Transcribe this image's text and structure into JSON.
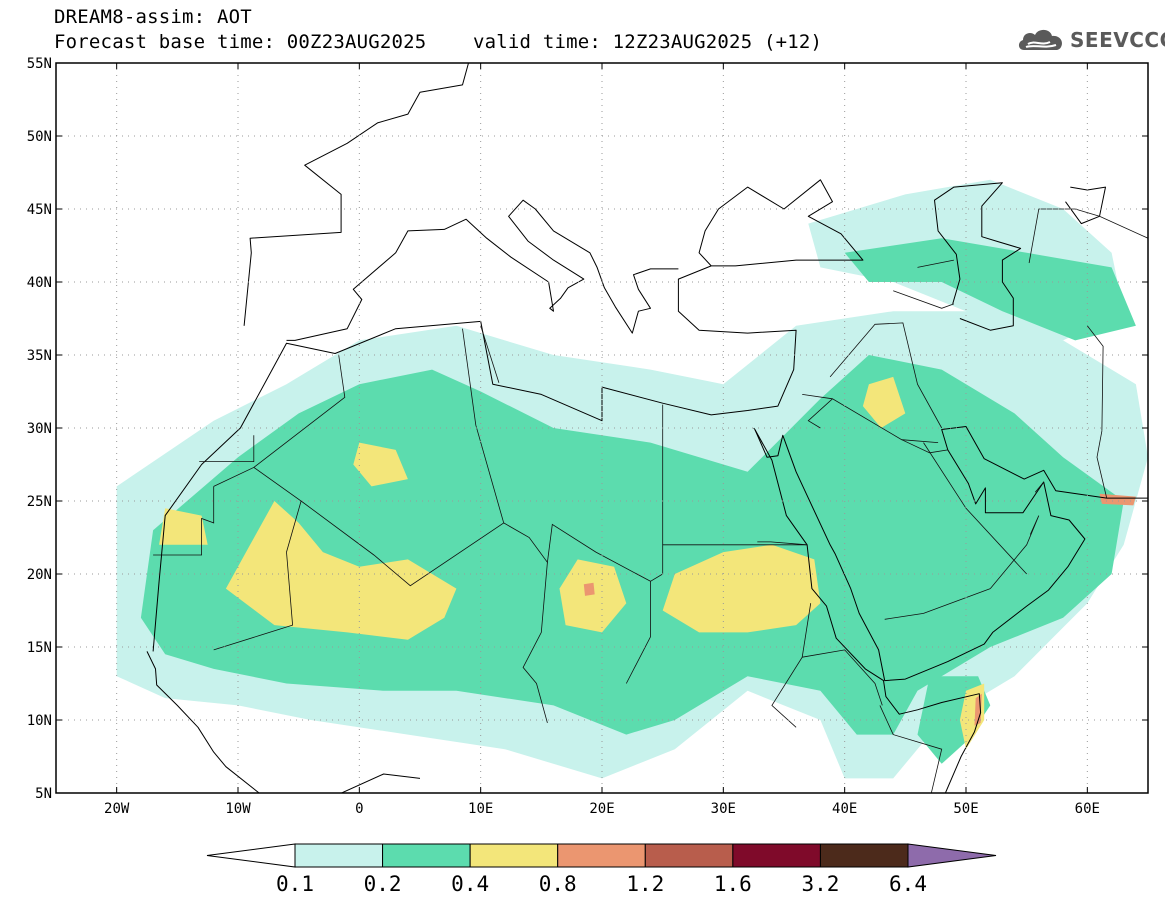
{
  "header": {
    "line1": "DREAM8-assim: AOT",
    "line2": "Forecast base time: 00Z23AUG2025    valid time: 12Z23AUG2025 (+12)"
  },
  "logo": {
    "text": "SEEVCCC",
    "icon": "cloud-icon"
  },
  "map": {
    "lon_range": [
      -25,
      65
    ],
    "lat_range": [
      5,
      55
    ],
    "lat_ticks": [
      {
        "value": 55,
        "label": "55N"
      },
      {
        "value": 50,
        "label": "50N"
      },
      {
        "value": 45,
        "label": "45N"
      },
      {
        "value": 40,
        "label": "40N"
      },
      {
        "value": 35,
        "label": "35N"
      },
      {
        "value": 30,
        "label": "30N"
      },
      {
        "value": 25,
        "label": "25N"
      },
      {
        "value": 20,
        "label": "20N"
      },
      {
        "value": 15,
        "label": "15N"
      },
      {
        "value": 10,
        "label": "10N"
      },
      {
        "value": 5,
        "label": "5N"
      }
    ],
    "lon_ticks": [
      {
        "value": -20,
        "label": "20W"
      },
      {
        "value": -10,
        "label": "10W"
      },
      {
        "value": 0,
        "label": "0"
      },
      {
        "value": 10,
        "label": "10E"
      },
      {
        "value": 20,
        "label": "20E"
      },
      {
        "value": 30,
        "label": "30E"
      },
      {
        "value": 40,
        "label": "40E"
      },
      {
        "value": 50,
        "label": "50E"
      },
      {
        "value": 60,
        "label": "60E"
      }
    ],
    "grid": "dotted",
    "dust_regions": [
      {
        "level": "0.1",
        "polygon": [
          [
            -20,
            19
          ],
          [
            -20,
            26
          ],
          [
            -12,
            30.5
          ],
          [
            -6,
            33
          ],
          [
            0,
            36
          ],
          [
            8,
            37
          ],
          [
            16,
            35
          ],
          [
            24,
            34
          ],
          [
            30,
            33
          ],
          [
            36,
            37
          ],
          [
            44,
            38
          ],
          [
            52,
            38
          ],
          [
            58,
            36
          ],
          [
            64,
            33
          ],
          [
            65,
            28
          ],
          [
            63,
            22
          ],
          [
            60,
            18
          ],
          [
            54,
            13
          ],
          [
            48,
            10
          ],
          [
            44,
            6
          ],
          [
            40,
            6
          ],
          [
            38,
            10
          ],
          [
            32,
            12
          ],
          [
            26,
            8
          ],
          [
            20,
            6
          ],
          [
            12,
            8
          ],
          [
            4,
            9
          ],
          [
            -4,
            10
          ],
          [
            -10,
            11
          ],
          [
            -16,
            11.5
          ],
          [
            -20,
            13
          ]
        ]
      },
      {
        "level": "0.1",
        "polygon": [
          [
            37,
            44
          ],
          [
            45,
            46
          ],
          [
            52,
            47
          ],
          [
            58,
            45
          ],
          [
            62,
            42
          ],
          [
            63,
            38
          ],
          [
            58,
            36
          ],
          [
            50,
            38
          ],
          [
            44,
            40
          ],
          [
            38,
            41
          ]
        ]
      },
      {
        "level": "0.2",
        "polygon": [
          [
            -18,
            17
          ],
          [
            -17,
            23
          ],
          [
            -10,
            28
          ],
          [
            -5,
            31
          ],
          [
            0,
            33
          ],
          [
            6,
            34
          ],
          [
            10,
            32.5
          ],
          [
            16,
            30
          ],
          [
            24,
            29
          ],
          [
            32,
            27
          ],
          [
            38,
            32
          ],
          [
            42,
            35
          ],
          [
            48,
            34
          ],
          [
            54,
            31
          ],
          [
            58,
            28
          ],
          [
            63,
            25
          ],
          [
            62,
            20
          ],
          [
            58,
            17
          ],
          [
            52,
            15
          ],
          [
            46,
            12
          ],
          [
            44,
            9
          ],
          [
            41,
            9
          ],
          [
            38,
            12
          ],
          [
            32,
            13
          ],
          [
            26,
            10
          ],
          [
            22,
            9
          ],
          [
            16,
            11
          ],
          [
            8,
            12
          ],
          [
            2,
            12
          ],
          [
            -6,
            12.5
          ],
          [
            -12,
            13.5
          ],
          [
            -16,
            14.5
          ]
        ]
      },
      {
        "level": "0.2",
        "polygon": [
          [
            40,
            42
          ],
          [
            48,
            43
          ],
          [
            55,
            42
          ],
          [
            62,
            41
          ],
          [
            64,
            37
          ],
          [
            59,
            36
          ],
          [
            53,
            38
          ],
          [
            48,
            40
          ],
          [
            42,
            40
          ]
        ]
      },
      {
        "level": "0.2",
        "polygon": [
          [
            47,
            13
          ],
          [
            51,
            13
          ],
          [
            52,
            11
          ],
          [
            50,
            8.5
          ],
          [
            48,
            7
          ],
          [
            46,
            9
          ]
        ]
      },
      {
        "level": "0.4",
        "polygon": [
          [
            -7,
            25
          ],
          [
            -9,
            22
          ],
          [
            -11,
            19
          ],
          [
            -7,
            16.5
          ],
          [
            -1,
            16
          ],
          [
            4,
            15.5
          ],
          [
            7,
            17
          ],
          [
            8,
            19
          ],
          [
            4,
            21
          ],
          [
            0,
            20.5
          ],
          [
            -3,
            21.5
          ],
          [
            -5,
            23.5
          ]
        ]
      },
      {
        "level": "0.4",
        "polygon": [
          [
            18,
            21
          ],
          [
            21,
            20.5
          ],
          [
            22,
            18
          ],
          [
            20,
            16
          ],
          [
            17,
            16.5
          ],
          [
            16.5,
            19
          ]
        ]
      },
      {
        "level": "0.4",
        "polygon": [
          [
            26,
            20
          ],
          [
            30,
            21.5
          ],
          [
            34,
            22
          ],
          [
            37.5,
            21
          ],
          [
            38,
            18
          ],
          [
            36,
            16.5
          ],
          [
            32,
            16
          ],
          [
            28,
            16
          ],
          [
            25,
            17.5
          ]
        ]
      },
      {
        "level": "0.4",
        "polygon": [
          [
            -16,
            24.5
          ],
          [
            -13,
            24
          ],
          [
            -12.5,
            22
          ],
          [
            -16.5,
            22
          ]
        ]
      },
      {
        "level": "0.4",
        "polygon": [
          [
            0,
            29
          ],
          [
            3,
            28.5
          ],
          [
            4,
            26.5
          ],
          [
            1,
            26
          ],
          [
            -0.5,
            27.5
          ]
        ]
      },
      {
        "level": "0.4",
        "polygon": [
          [
            50,
            12
          ],
          [
            51.5,
            12.5
          ],
          [
            51.5,
            10
          ],
          [
            50,
            8
          ],
          [
            49.5,
            10
          ]
        ]
      },
      {
        "level": "0.4",
        "polygon": [
          [
            42,
            33
          ],
          [
            44,
            33.5
          ],
          [
            45,
            31
          ],
          [
            43,
            30
          ],
          [
            41.5,
            31.5
          ]
        ]
      },
      {
        "level": "0.8",
        "polygon": [
          [
            18.5,
            19.3
          ],
          [
            19.3,
            19.4
          ],
          [
            19.4,
            18.6
          ],
          [
            18.6,
            18.5
          ]
        ]
      },
      {
        "level": "0.8",
        "polygon": [
          [
            50.8,
            11.5
          ],
          [
            51.3,
            11.8
          ],
          [
            51.2,
            9.8
          ],
          [
            50.7,
            9.6
          ]
        ]
      },
      {
        "level": "0.8",
        "polygon": [
          [
            61,
            25.5
          ],
          [
            64,
            25.3
          ],
          [
            63.8,
            24.7
          ],
          [
            61.2,
            24.8
          ]
        ]
      }
    ]
  },
  "colorbar": {
    "colors": [
      "#ffffff",
      "#c8f2ec",
      "#5cdcae",
      "#f3e67a",
      "#eb9670",
      "#b85d4c",
      "#7f0a2a",
      "#4c2a1b",
      "#8e6bab"
    ],
    "labels": [
      "0.1",
      "0.2",
      "0.4",
      "0.8",
      "1.2",
      "1.6",
      "3.2",
      "6.4"
    ],
    "level_colors": {
      "0.1": "#c8f2ec",
      "0.2": "#5cdcae",
      "0.4": "#f3e67a",
      "0.8": "#eb9670"
    }
  }
}
